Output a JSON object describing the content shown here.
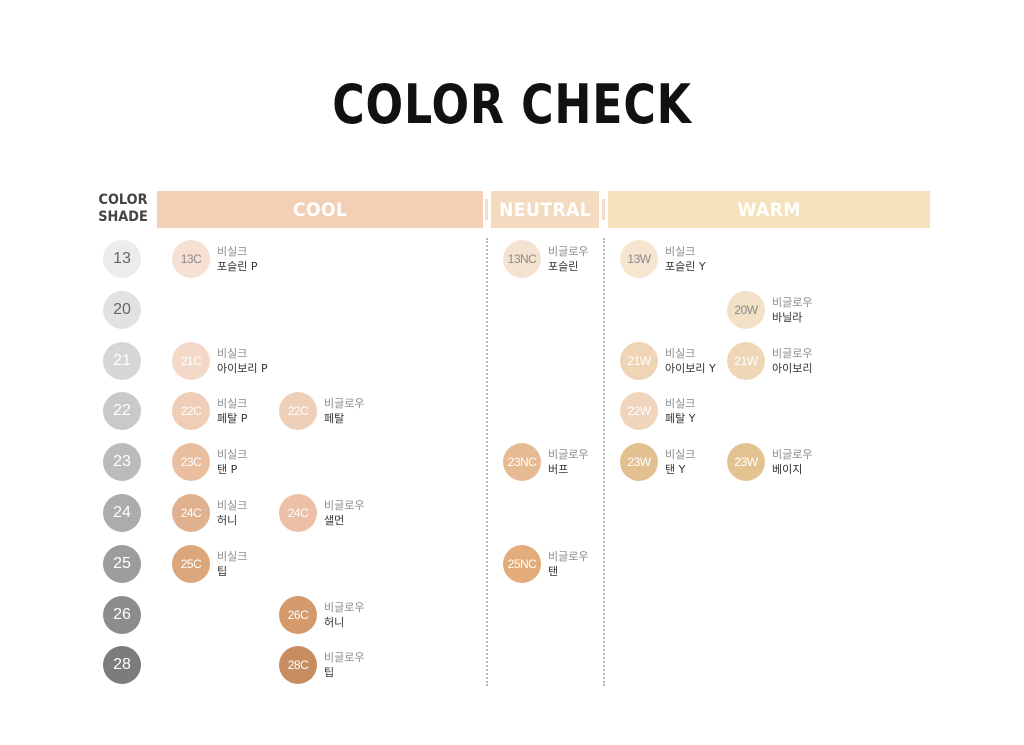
{
  "title": "COLOR CHECK",
  "shade_header": {
    "line1": "COLOR",
    "line2": "SHADE"
  },
  "categories": {
    "cool": "COOL",
    "neutral": "NEUTRAL",
    "warm": "WARM"
  },
  "colors": {
    "cool_band": "#f2cfb5",
    "neutral_band": "#f4dbc0",
    "warm_band": "#f5e2bd"
  },
  "shades": [
    {
      "label": "13",
      "color": "#ececec"
    },
    {
      "label": "20",
      "color": "#e2e2e2"
    },
    {
      "label": "21",
      "color": "#d6d6d6"
    },
    {
      "label": "22",
      "color": "#c9c9c9"
    },
    {
      "label": "23",
      "color": "#bbbbbb"
    },
    {
      "label": "24",
      "color": "#acacac"
    },
    {
      "label": "25",
      "color": "#9c9c9c"
    },
    {
      "label": "26",
      "color": "#8c8c8c"
    },
    {
      "label": "28",
      "color": "#7c7c7c"
    }
  ],
  "swatches": [
    {
      "row": 0,
      "col": "cool1",
      "code": "13C",
      "brand": "비실크",
      "name": "포슬린 P",
      "color": "#f6e0d3",
      "dark_text": true
    },
    {
      "row": 0,
      "col": "neutral",
      "code": "13NC",
      "brand": "비글로우",
      "name": "포슬린",
      "color": "#f5e3d2",
      "dark_text": true
    },
    {
      "row": 0,
      "col": "warm1",
      "code": "13W",
      "brand": "비실크",
      "name": "포슬린 Y",
      "color": "#f6e6cf",
      "dark_text": true
    },
    {
      "row": 1,
      "col": "warm2",
      "code": "20W",
      "brand": "비글로우",
      "name": "바닐라",
      "color": "#f3e1c7",
      "dark_text": true
    },
    {
      "row": 2,
      "col": "cool1",
      "code": "21C",
      "brand": "비실크",
      "name": "아이보리 P",
      "color": "#f4d8c8",
      "dark_text": false
    },
    {
      "row": 2,
      "col": "warm1",
      "code": "21W",
      "brand": "비실크",
      "name": "아이보리 Y",
      "color": "#efd5b5",
      "dark_text": false
    },
    {
      "row": 2,
      "col": "warm2",
      "code": "21W",
      "brand": "비글로우",
      "name": "아이보리",
      "color": "#eed6b7",
      "dark_text": false
    },
    {
      "row": 3,
      "col": "cool1",
      "code": "22C",
      "brand": "비실크",
      "name": "페탈 P",
      "color": "#efcdb6",
      "dark_text": false
    },
    {
      "row": 3,
      "col": "cool2",
      "code": "22C",
      "brand": "비글로우",
      "name": "페탈",
      "color": "#eecfb8",
      "dark_text": false
    },
    {
      "row": 3,
      "col": "warm1",
      "code": "22W",
      "brand": "비실크",
      "name": "페탈 Y",
      "color": "#f0d5bd",
      "dark_text": false
    },
    {
      "row": 4,
      "col": "cool1",
      "code": "23C",
      "brand": "비실크",
      "name": "탠 P",
      "color": "#e9bf9f",
      "dark_text": false
    },
    {
      "row": 4,
      "col": "neutral",
      "code": "23NC",
      "brand": "비글로우",
      "name": "버프",
      "color": "#e6bb93",
      "dark_text": false
    },
    {
      "row": 4,
      "col": "warm1",
      "code": "23W",
      "brand": "비실크",
      "name": "탠 Y",
      "color": "#e2c090",
      "dark_text": false
    },
    {
      "row": 4,
      "col": "warm2",
      "code": "23W",
      "brand": "비글로우",
      "name": "베이지",
      "color": "#e4c393",
      "dark_text": false
    },
    {
      "row": 5,
      "col": "cool1",
      "code": "24C",
      "brand": "비실크",
      "name": "허니",
      "color": "#e0b18f",
      "dark_text": false
    },
    {
      "row": 5,
      "col": "cool2",
      "code": "24C",
      "brand": "비글로우",
      "name": "샐먼",
      "color": "#ebc0a6",
      "dark_text": false
    },
    {
      "row": 6,
      "col": "cool1",
      "code": "25C",
      "brand": "비실크",
      "name": "팁",
      "color": "#dba77a",
      "dark_text": false
    },
    {
      "row": 6,
      "col": "neutral",
      "code": "25NC",
      "brand": "비글로우",
      "name": "탠",
      "color": "#e3ac7a",
      "dark_text": false
    },
    {
      "row": 7,
      "col": "cool2",
      "code": "26C",
      "brand": "비글로우",
      "name": "허니",
      "color": "#d49a6c",
      "dark_text": false
    },
    {
      "row": 8,
      "col": "cool2",
      "code": "28C",
      "brand": "비글로우",
      "name": "팁",
      "color": "#c78c60",
      "dark_text": false
    }
  ]
}
